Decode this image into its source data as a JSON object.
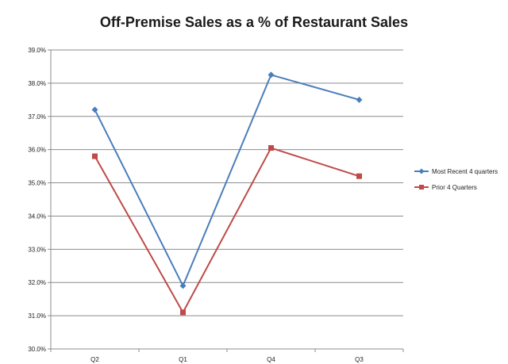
{
  "chart_data": {
    "type": "line",
    "title": "Off-Premise Sales as a % of Restaurant Sales",
    "xlabel": "",
    "ylabel": "",
    "categories": [
      "Q2",
      "Q1",
      "Q4",
      "Q3"
    ],
    "ylim": [
      30.0,
      39.0
    ],
    "ytick_step": 1.0,
    "ytick_labels": [
      "30.0%",
      "31.0%",
      "32.0%",
      "33.0%",
      "34.0%",
      "35.0%",
      "36.0%",
      "37.0%",
      "38.0%",
      "39.0%"
    ],
    "grid": true,
    "legend_position": "right",
    "series": [
      {
        "name": "Most Recent  4 quarters",
        "values": [
          37.2,
          31.9,
          38.25,
          37.5
        ],
        "color": "#4a7ebb",
        "marker": "diamond"
      },
      {
        "name": "Prior 4 Quarters",
        "values": [
          35.8,
          31.1,
          36.05,
          35.2
        ],
        "color": "#be4b48",
        "marker": "square"
      }
    ]
  }
}
